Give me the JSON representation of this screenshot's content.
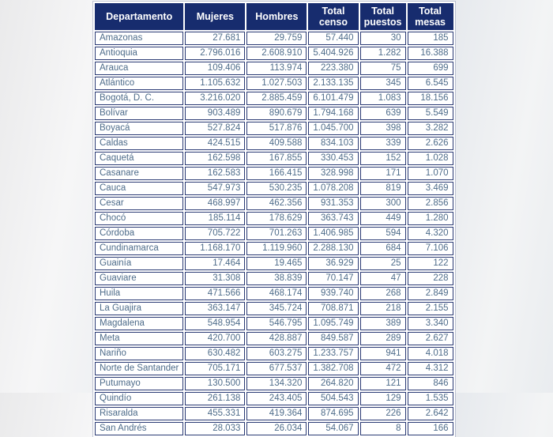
{
  "chart_data": {
    "type": "table",
    "title": "",
    "columns": [
      "Departamento",
      "Mujeres",
      "Hombres",
      "Total censo",
      "Total puestos",
      "Total mesas"
    ],
    "rows": [
      [
        "Amazonas",
        "27.681",
        "29.759",
        "57.440",
        "30",
        "185"
      ],
      [
        "Antioquia",
        "2.796.016",
        "2.608.910",
        "5.404.926",
        "1.282",
        "16.388"
      ],
      [
        "Arauca",
        "109.406",
        "113.974",
        "223.380",
        "75",
        "699"
      ],
      [
        "Atlántico",
        "1.105.632",
        "1.027.503",
        "2.133.135",
        "345",
        "6.545"
      ],
      [
        "Bogotá, D. C.",
        "3.216.020",
        "2.885.459",
        "6.101.479",
        "1.083",
        "18.156"
      ],
      [
        "Bolívar",
        "903.489",
        "890.679",
        "1.794.168",
        "639",
        "5.549"
      ],
      [
        "Boyacá",
        "527.824",
        "517.876",
        "1.045.700",
        "398",
        "3.282"
      ],
      [
        "Caldas",
        "424.515",
        "409.588",
        "834.103",
        "339",
        "2.626"
      ],
      [
        "Caquetá",
        "162.598",
        "167.855",
        "330.453",
        "152",
        "1.028"
      ],
      [
        "Casanare",
        "162.583",
        "166.415",
        "328.998",
        "171",
        "1.070"
      ],
      [
        "Cauca",
        "547.973",
        "530.235",
        "1.078.208",
        "819",
        "3.469"
      ],
      [
        "Cesar",
        "468.997",
        "462.356",
        "931.353",
        "300",
        "2.856"
      ],
      [
        "Chocó",
        "185.114",
        "178.629",
        "363.743",
        "449",
        "1.280"
      ],
      [
        "Córdoba",
        "705.722",
        "701.263",
        "1.406.985",
        "594",
        "4.320"
      ],
      [
        "Cundinamarca",
        "1.168.170",
        "1.119.960",
        "2.288.130",
        "684",
        "7.106"
      ],
      [
        "Guainía",
        "17.464",
        "19.465",
        "36.929",
        "25",
        "122"
      ],
      [
        "Guaviare",
        "31.308",
        "38.839",
        "70.147",
        "47",
        "228"
      ],
      [
        "Huila",
        "471.566",
        "468.174",
        "939.740",
        "268",
        "2.849"
      ],
      [
        "La Guajira",
        "363.147",
        "345.724",
        "708.871",
        "218",
        "2.155"
      ],
      [
        "Magdalena",
        "548.954",
        "546.795",
        "1.095.749",
        "389",
        "3.340"
      ],
      [
        "Meta",
        "420.700",
        "428.887",
        "849.587",
        "289",
        "2.627"
      ],
      [
        "Nariño",
        "630.482",
        "603.275",
        "1.233.757",
        "941",
        "4.018"
      ],
      [
        "Norte de Santander",
        "705.171",
        "677.537",
        "1.382.708",
        "472",
        "4.312"
      ],
      [
        "Putumayo",
        "130.500",
        "134.320",
        "264.820",
        "121",
        "846"
      ],
      [
        "Quindío",
        "261.138",
        "243.405",
        "504.543",
        "129",
        "1.535"
      ],
      [
        "Risaralda",
        "455.331",
        "419.364",
        "874.695",
        "226",
        "2.642"
      ],
      [
        "San Andrés",
        "28.033",
        "26.034",
        "54.067",
        "8",
        "166"
      ]
    ]
  },
  "colors": {
    "header_bg": "#172c6e",
    "header_text": "#ffffff",
    "cell_text": "#4e6c8a",
    "border": "#2a3a74",
    "table_bg": "#ffffff"
  }
}
